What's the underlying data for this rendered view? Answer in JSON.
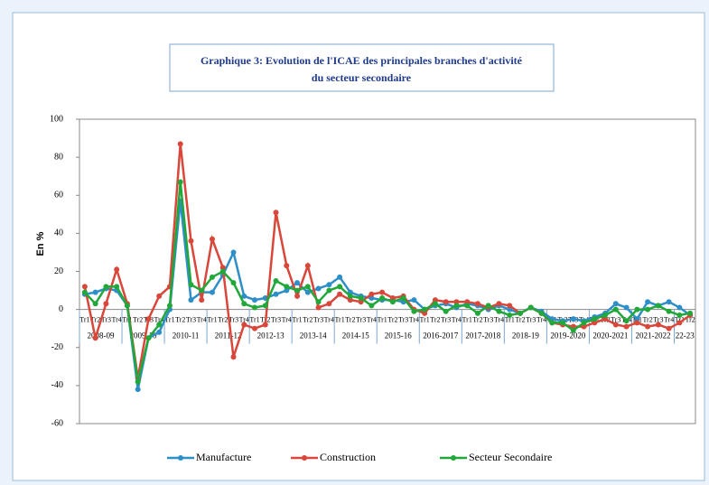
{
  "chart_data": {
    "type": "line",
    "title": "Graphique 3: Evolution de l'ICAE des principales branches d'activité",
    "subtitle": "du secteur secondaire",
    "y_label": "En %",
    "categories": [
      "Tr1",
      "Tr2",
      "Tr3",
      "Tr4",
      "Tr1",
      "Tr2",
      "Tr3",
      "Tr4",
      "Tr1",
      "Tr2",
      "Tr3",
      "Tr4",
      "Tr1",
      "Tr2",
      "Tr3",
      "Tr4",
      "Tr1",
      "Tr2",
      "Tr3",
      "Tr4",
      "Tr1",
      "Tr2",
      "Tr3",
      "Tr4",
      "Tr1",
      "Tr2",
      "Tr3",
      "Tr4",
      "Tr1",
      "Tr2",
      "Tr3",
      "Tr4",
      "Tr1",
      "Tr2",
      "Tr3",
      "Tr4",
      "Tr1",
      "Tr2",
      "Tr3",
      "Tr4",
      "Tr1",
      "Tr2",
      "Tr3",
      "Tr4",
      "Tr1",
      "Tr2",
      "Tr3",
      "Tr4",
      "Tr1",
      "Tr2",
      "Tr3",
      "Tr4",
      "Tr1",
      "Tr2",
      "Tr3",
      "Tr4",
      "Tr1",
      "Tr2"
    ],
    "x_groups": [
      "2008-09",
      "2009-10",
      "2010-11",
      "2011-12",
      "2012-13",
      "2013-14",
      "2014-15",
      "2015-16",
      "2016-2017",
      "2017-2018",
      "2018-19",
      "2019-2020",
      "2020-2021",
      "2021-2022",
      "22-23"
    ],
    "series": [
      {
        "name": "Manufacture",
        "color": "#2e8fc8",
        "values": [
          8,
          9,
          11,
          10,
          2,
          -42,
          -15,
          -12,
          0,
          57,
          5,
          9,
          9,
          18,
          30,
          7,
          5,
          6,
          8,
          10,
          14,
          9,
          11,
          13,
          17,
          9,
          7,
          6,
          5,
          5,
          4,
          5,
          0,
          2,
          3,
          1,
          3,
          2,
          0,
          2,
          0,
          -2,
          1,
          -1,
          -5,
          -6,
          -5,
          -6,
          -4,
          -2,
          3,
          1,
          -5,
          4,
          2,
          4,
          1,
          -3
        ]
      },
      {
        "name": "Construction",
        "color": "#d9463a",
        "values": [
          12,
          -15,
          3,
          21,
          3,
          -36,
          -5,
          7,
          12,
          87,
          36,
          5,
          37,
          22,
          -25,
          -8,
          -10,
          -8,
          51,
          23,
          7,
          23,
          1,
          3,
          8,
          5,
          4,
          8,
          9,
          6,
          7,
          0,
          -2,
          5,
          4,
          4,
          4,
          3,
          1,
          3,
          2,
          -2,
          1,
          -2,
          -7,
          -8,
          -9,
          -9,
          -7,
          -5,
          -8,
          -9,
          -7,
          -9,
          -8,
          -10,
          -7,
          -3
        ]
      },
      {
        "name": "Secteur Secondaire",
        "color": "#22a83a",
        "values": [
          9,
          3,
          12,
          12,
          2,
          -38,
          -15,
          -8,
          2,
          67,
          13,
          10,
          17,
          20,
          14,
          3,
          1,
          2,
          15,
          12,
          10,
          12,
          4,
          10,
          12,
          7,
          6,
          2,
          6,
          4,
          6,
          -1,
          0,
          3,
          -1,
          2,
          2,
          -2,
          2,
          -1,
          -3,
          -2,
          1,
          -2,
          -7,
          -7,
          -11,
          -7,
          -5,
          -3,
          0,
          -6,
          0,
          0,
          2,
          -1,
          -3,
          -2
        ]
      }
    ],
    "ylim": [
      -60,
      100
    ],
    "yticks": [
      -60,
      -40,
      -20,
      0,
      20,
      40,
      60,
      80,
      100
    ],
    "legend": "bottom"
  }
}
